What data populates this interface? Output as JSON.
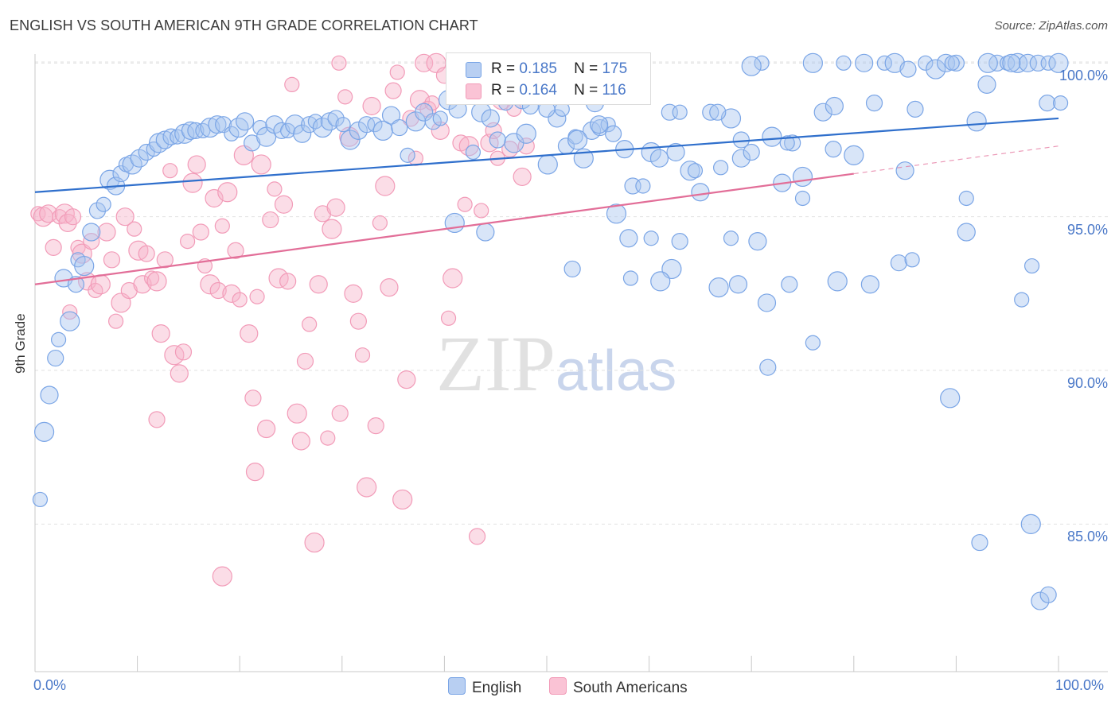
{
  "title": "ENGLISH VS SOUTH AMERICAN 9TH GRADE CORRELATION CHART",
  "source": "Source: ZipAtlas.com",
  "watermark": {
    "zip": "ZIP",
    "atlas": "atlas"
  },
  "stats": [
    {
      "r_label": "R =",
      "r": "0.185",
      "n_label": "N =",
      "n": "175"
    },
    {
      "r_label": "R =",
      "r": "0.164",
      "n_label": "N =",
      "n": "116"
    }
  ],
  "legend": [
    "English",
    "South Americans"
  ],
  "chart_data": {
    "type": "scatter",
    "xlabel": "",
    "ylabel": "9th Grade",
    "xlim": [
      0,
      100
    ],
    "ylim": [
      80.2,
      100.5
    ],
    "x_tick_labels": [
      "0.0%",
      "100.0%"
    ],
    "y_ticks": [
      85,
      90,
      95,
      100
    ],
    "y_tick_labels": [
      "85.0%",
      "90.0%",
      "95.0%",
      "100.0%"
    ],
    "grid": "dashed horizontal",
    "legend_position": "bottom-center",
    "colors": {
      "English": "#7aa5e6",
      "South Americans": "#f29bb8",
      "english_line": "#2f6fcc",
      "south_line": "#e26e98"
    },
    "series": [
      {
        "name": "English",
        "trend": {
          "x": [
            0,
            100
          ],
          "y": [
            95.8,
            98.2
          ]
        },
        "points": [
          [
            0.5,
            85.8
          ],
          [
            0.9,
            88.0
          ],
          [
            1.4,
            89.2
          ],
          [
            2,
            90.4
          ],
          [
            2.3,
            91
          ],
          [
            3.4,
            91.6
          ],
          [
            2.8,
            93
          ],
          [
            4,
            92.8
          ],
          [
            4.2,
            93.6
          ],
          [
            4.8,
            93.4
          ],
          [
            5.5,
            94.5
          ],
          [
            6.1,
            95.2
          ],
          [
            6.7,
            95.4
          ],
          [
            7.3,
            96.2
          ],
          [
            7.9,
            96
          ],
          [
            8.4,
            96.4
          ],
          [
            8.9,
            96.7
          ],
          [
            9.5,
            96.7
          ],
          [
            10.2,
            96.9
          ],
          [
            10.9,
            97.1
          ],
          [
            11.6,
            97.2
          ],
          [
            12.1,
            97.4
          ],
          [
            12.7,
            97.5
          ],
          [
            13.3,
            97.6
          ],
          [
            13.9,
            97.6
          ],
          [
            14.6,
            97.7
          ],
          [
            15.2,
            97.8
          ],
          [
            15.7,
            97.8
          ],
          [
            16.4,
            97.8
          ],
          [
            17.1,
            97.9
          ],
          [
            17.8,
            98
          ],
          [
            18.4,
            98
          ],
          [
            19.2,
            97.7
          ],
          [
            19.9,
            97.9
          ],
          [
            20.5,
            98.1
          ],
          [
            21.2,
            97.4
          ],
          [
            22,
            97.9
          ],
          [
            22.6,
            97.6
          ],
          [
            23.4,
            98
          ],
          [
            24.1,
            97.8
          ],
          [
            24.7,
            97.8
          ],
          [
            25.4,
            98
          ],
          [
            26.1,
            97.7
          ],
          [
            26.8,
            98
          ],
          [
            27.4,
            98.1
          ],
          [
            28.1,
            97.9
          ],
          [
            28.8,
            98.1
          ],
          [
            29.4,
            98.2
          ],
          [
            30.1,
            98
          ],
          [
            30.8,
            97.5
          ],
          [
            31.6,
            97.8
          ],
          [
            32.4,
            98
          ],
          [
            33.2,
            98
          ],
          [
            34,
            97.8
          ],
          [
            34.8,
            98.3
          ],
          [
            35.6,
            97.9
          ],
          [
            36.4,
            97
          ],
          [
            37.2,
            98.1
          ],
          [
            38,
            98.4
          ],
          [
            38.9,
            98.1
          ],
          [
            39.6,
            98.2
          ],
          [
            40.4,
            98.8
          ],
          [
            41.3,
            98.5
          ],
          [
            42,
            99
          ],
          [
            42.8,
            97.1
          ],
          [
            43.6,
            98.4
          ],
          [
            44.5,
            98.2
          ],
          [
            45.2,
            97.5
          ],
          [
            46,
            98.7
          ],
          [
            46.8,
            97.4
          ],
          [
            47.6,
            98.8
          ],
          [
            48.4,
            98.6
          ],
          [
            49.2,
            100
          ],
          [
            50.1,
            96.7
          ],
          [
            51,
            98.2
          ],
          [
            51.9,
            97.3
          ],
          [
            52.8,
            97.6
          ],
          [
            53.6,
            96.9
          ],
          [
            54.4,
            97.8
          ],
          [
            55.2,
            97.9
          ],
          [
            56,
            98
          ],
          [
            56.8,
            95.1
          ],
          [
            57.6,
            97.2
          ],
          [
            58.4,
            96
          ],
          [
            59.4,
            96
          ],
          [
            60.2,
            97.1
          ],
          [
            61,
            96.9
          ],
          [
            62,
            98.4
          ],
          [
            63,
            98.4
          ],
          [
            64,
            96.5
          ],
          [
            65,
            95.8
          ],
          [
            66,
            98.4
          ],
          [
            67,
            96.6
          ],
          [
            68,
            98.2
          ],
          [
            69,
            96.9
          ],
          [
            70,
            97.1
          ],
          [
            71,
            100
          ],
          [
            72,
            97.6
          ],
          [
            73,
            96.1
          ],
          [
            74,
            97.4
          ],
          [
            75,
            95.6
          ],
          [
            76,
            100
          ],
          [
            77,
            98.4
          ],
          [
            78,
            97.2
          ],
          [
            79,
            100
          ],
          [
            80,
            97
          ],
          [
            81,
            100
          ],
          [
            82,
            98.7
          ],
          [
            83,
            100
          ],
          [
            84,
            100
          ],
          [
            85,
            96.5
          ],
          [
            86,
            98.5
          ],
          [
            87,
            100
          ],
          [
            88,
            99.8
          ],
          [
            89,
            100
          ],
          [
            90,
            100
          ],
          [
            91,
            95.6
          ],
          [
            92,
            98.1
          ],
          [
            93,
            99.3
          ],
          [
            94,
            100
          ],
          [
            95,
            100
          ],
          [
            96,
            100
          ],
          [
            97,
            100
          ],
          [
            98,
            100
          ],
          [
            99,
            100
          ],
          [
            100,
            100
          ],
          [
            58,
            94.3
          ],
          [
            63,
            94.2
          ],
          [
            68,
            94.3
          ],
          [
            41,
            94.8
          ],
          [
            44,
            94.5
          ],
          [
            52.5,
            93.3
          ],
          [
            58.2,
            93
          ],
          [
            62.2,
            93.3
          ],
          [
            71.5,
            92.2
          ],
          [
            73.7,
            92.8
          ],
          [
            76,
            90.9
          ],
          [
            78.4,
            92.9
          ],
          [
            81.6,
            92.8
          ],
          [
            84.4,
            93.5
          ],
          [
            85.7,
            93.6
          ],
          [
            89.4,
            89.1
          ],
          [
            91,
            94.5
          ],
          [
            92.3,
            84.4
          ],
          [
            96.4,
            92.3
          ],
          [
            97.3,
            85
          ],
          [
            98.2,
            82.5
          ],
          [
            99,
            82.7
          ],
          [
            97.4,
            93.4
          ],
          [
            75,
            96.3
          ],
          [
            62.6,
            97.1
          ],
          [
            69,
            97.5
          ],
          [
            60.2,
            94.3
          ],
          [
            66.8,
            92.7
          ],
          [
            70.6,
            94.2
          ],
          [
            71.6,
            90.1
          ],
          [
            64.5,
            96.5
          ],
          [
            61.1,
            92.9
          ],
          [
            68.7,
            92.8
          ],
          [
            66.7,
            98.4
          ],
          [
            73.5,
            97.4
          ],
          [
            53,
            97.5
          ],
          [
            55.1,
            98
          ],
          [
            50,
            98.5
          ],
          [
            51.5,
            98.5
          ],
          [
            48,
            97.7
          ],
          [
            54.7,
            98.7
          ],
          [
            56.5,
            97.7
          ],
          [
            57.3,
            99.4
          ],
          [
            70,
            99.9
          ],
          [
            78.1,
            98.6
          ],
          [
            85.3,
            99.8
          ],
          [
            89.6,
            100
          ],
          [
            93.1,
            100
          ],
          [
            95.4,
            100
          ],
          [
            98.9,
            98.7
          ],
          [
            100.2,
            98.7
          ]
        ]
      },
      {
        "name": "South Americans",
        "trend": {
          "x": [
            0,
            80
          ],
          "y": [
            92.8,
            96.4
          ],
          "extended": {
            "x": [
              80,
              100
            ],
            "y": [
              96.4,
              97.3
            ]
          }
        },
        "points": [
          [
            0.3,
            95.1
          ],
          [
            0.8,
            95
          ],
          [
            1.3,
            95.1
          ],
          [
            1.8,
            94
          ],
          [
            2.4,
            95
          ],
          [
            2.9,
            95.1
          ],
          [
            3.2,
            94.8
          ],
          [
            3.7,
            95
          ],
          [
            4.2,
            94
          ],
          [
            4.6,
            93.8
          ],
          [
            5.1,
            92.9
          ],
          [
            5.5,
            94.2
          ],
          [
            5.9,
            92.6
          ],
          [
            6.4,
            92.8
          ],
          [
            7,
            94.5
          ],
          [
            7.5,
            93.6
          ],
          [
            7.9,
            91.6
          ],
          [
            8.4,
            92.2
          ],
          [
            8.8,
            95
          ],
          [
            9.2,
            92.6
          ],
          [
            9.7,
            94.6
          ],
          [
            10.1,
            93.9
          ],
          [
            10.5,
            92.8
          ],
          [
            10.9,
            93.8
          ],
          [
            11.4,
            93
          ],
          [
            11.9,
            92.9
          ],
          [
            12.3,
            91.2
          ],
          [
            12.7,
            93.6
          ],
          [
            13.2,
            96.5
          ],
          [
            13.6,
            90.5
          ],
          [
            14.1,
            89.9
          ],
          [
            14.5,
            90.6
          ],
          [
            14.9,
            94.2
          ],
          [
            15.4,
            96.1
          ],
          [
            15.8,
            96.7
          ],
          [
            16.2,
            94.5
          ],
          [
            16.6,
            93.4
          ],
          [
            17.1,
            92.8
          ],
          [
            17.5,
            95.6
          ],
          [
            17.9,
            92.6
          ],
          [
            18.3,
            94.7
          ],
          [
            18.8,
            95.8
          ],
          [
            19.2,
            92.5
          ],
          [
            19.6,
            93.9
          ],
          [
            20,
            92.3
          ],
          [
            20.4,
            97
          ],
          [
            20.9,
            91.2
          ],
          [
            21.3,
            89.1
          ],
          [
            21.7,
            92.4
          ],
          [
            22.1,
            96.7
          ],
          [
            22.6,
            88.1
          ],
          [
            23,
            94.9
          ],
          [
            23.4,
            95.9
          ],
          [
            23.8,
            93
          ],
          [
            24.3,
            95.4
          ],
          [
            24.7,
            92.9
          ],
          [
            25.1,
            99.3
          ],
          [
            25.6,
            88.6
          ],
          [
            26,
            87.7
          ],
          [
            26.4,
            90.3
          ],
          [
            26.8,
            91.5
          ],
          [
            27.3,
            84.4
          ],
          [
            27.7,
            92.8
          ],
          [
            28.1,
            95.1
          ],
          [
            28.6,
            87.8
          ],
          [
            29,
            94.6
          ],
          [
            29.4,
            95.3
          ],
          [
            29.8,
            88.6
          ],
          [
            30.3,
            98.9
          ],
          [
            30.7,
            97.6
          ],
          [
            31.1,
            92.5
          ],
          [
            31.6,
            91.6
          ],
          [
            32,
            90.5
          ],
          [
            32.4,
            86.2
          ],
          [
            32.9,
            98.6
          ],
          [
            33.3,
            88.2
          ],
          [
            33.7,
            94.8
          ],
          [
            34.2,
            96
          ],
          [
            34.6,
            92.7
          ],
          [
            35,
            99.1
          ],
          [
            35.4,
            99.7
          ],
          [
            35.9,
            85.8
          ],
          [
            36.3,
            89.7
          ],
          [
            36.7,
            98.2
          ],
          [
            37.2,
            96.9
          ],
          [
            37.6,
            98.8
          ],
          [
            38,
            100
          ],
          [
            38.4,
            98.5
          ],
          [
            38.8,
            98.7
          ],
          [
            39.2,
            100
          ],
          [
            39.6,
            97.8
          ],
          [
            40,
            99.6
          ],
          [
            40.4,
            91.7
          ],
          [
            40.8,
            93
          ],
          [
            41.2,
            100
          ],
          [
            41.6,
            97.4
          ],
          [
            42,
            95.4
          ],
          [
            42.4,
            97.3
          ],
          [
            42.8,
            99.4
          ],
          [
            43.2,
            84.6
          ],
          [
            43.6,
            95.2
          ],
          [
            44,
            100
          ],
          [
            44.4,
            97.4
          ],
          [
            44.8,
            97.8
          ],
          [
            45.2,
            96.9
          ],
          [
            45.6,
            98.8
          ],
          [
            46,
            100
          ],
          [
            46.4,
            97.2
          ],
          [
            46.8,
            98.5
          ],
          [
            47.2,
            100
          ],
          [
            47.6,
            96.3
          ],
          [
            48,
            97.3
          ],
          [
            29.7,
            100
          ],
          [
            18.3,
            83.3
          ],
          [
            21.5,
            86.7
          ],
          [
            11.9,
            88.4
          ],
          [
            3.4,
            91.9
          ]
        ]
      }
    ]
  }
}
